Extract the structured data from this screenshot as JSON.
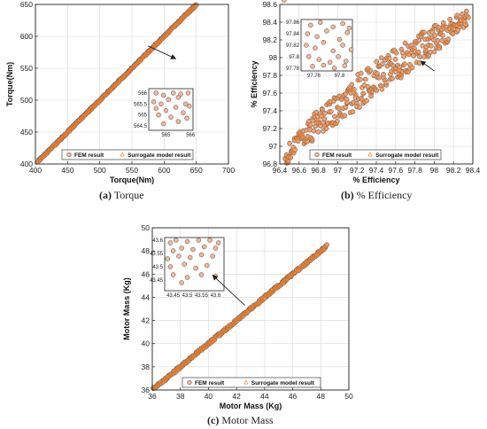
{
  "colors": {
    "fem_face": "#f2b79a",
    "fem_edge": "#4a4a4a",
    "surrogate": "#e07a2a",
    "frame": "#222222",
    "grid": "#d9d9d9"
  },
  "legend": {
    "fem": "FEM result",
    "surrogate": "Surrogate model result",
    "placement": "bottom"
  },
  "captions": [
    {
      "tag": "(a)",
      "text": "Torque"
    },
    {
      "tag": "(b)",
      "text": "% Efficiency"
    },
    {
      "tag": "(c)",
      "text": "Motor Mass"
    }
  ],
  "chart_data": [
    {
      "type": "scatter",
      "xlabel": "Torque(Nm)",
      "ylabel": "Torque(Nm)",
      "xlim": [
        400,
        700
      ],
      "ylim": [
        400,
        650
      ],
      "xticks": [
        "400",
        "450",
        "500",
        "550",
        "600",
        "650",
        "700"
      ],
      "yticks": [
        "400",
        "450",
        "500",
        "550",
        "600",
        "650"
      ],
      "grid": true,
      "series": [
        {
          "name": "FEM result",
          "x_range": [
            405,
            650
          ],
          "spread": 1.5
        },
        {
          "name": "Surrogate model result",
          "x_range": [
            405,
            650
          ],
          "spread": 1.5
        }
      ],
      "inset": {
        "xlim": [
          564.3,
          566.1
        ],
        "ylim": [
          564.3,
          566.2
        ],
        "xticks": [
          "565",
          "566"
        ],
        "yticks": [
          "566",
          "565.5",
          "565",
          "564.5"
        ],
        "points": [
          [
            564.6,
            566.0
          ],
          [
            564.9,
            565.9
          ],
          [
            565.3,
            566.0
          ],
          [
            565.6,
            565.95
          ],
          [
            565.9,
            566.0
          ],
          [
            564.5,
            565.6
          ],
          [
            564.8,
            565.5
          ],
          [
            565.1,
            565.7
          ],
          [
            565.5,
            565.8
          ],
          [
            565.8,
            565.5
          ],
          [
            564.6,
            565.3
          ],
          [
            565.0,
            565.2
          ],
          [
            565.4,
            565.35
          ],
          [
            565.7,
            565.1
          ],
          [
            565.95,
            565.4
          ],
          [
            564.7,
            565.0
          ],
          [
            565.2,
            564.9
          ],
          [
            565.5,
            564.7
          ],
          [
            565.85,
            564.85
          ],
          [
            564.9,
            564.6
          ]
        ],
        "arrow_from": [
          575,
          585
        ],
        "arrow_to": [
          618,
          565
        ]
      }
    },
    {
      "type": "scatter",
      "xlabel": "% Efficiency",
      "ylabel": "% Efficiency",
      "xlim": [
        96.4,
        98.4
      ],
      "ylim": [
        96.8,
        98.6
      ],
      "xticks": [
        "96.4",
        "96.6",
        "96.8",
        "97",
        "97.2",
        "97.4",
        "97.6",
        "97.8",
        "98",
        "98.2",
        "98.4"
      ],
      "yticks": [
        "96.8",
        "97",
        "97.2",
        "97.4",
        "97.6",
        "97.8",
        "98",
        "98.2",
        "98.4",
        "98.6"
      ],
      "grid": true,
      "series": [
        {
          "name": "FEM result",
          "x_range": [
            96.45,
            98.35
          ],
          "spread": 0.06
        },
        {
          "name": "Surrogate model result",
          "x_range": [
            96.45,
            98.35
          ],
          "spread": 0.06
        }
      ],
      "inset": {
        "xlim": [
          97.74,
          97.82
        ],
        "ylim": [
          97.775,
          97.865
        ],
        "xticks": [
          "97.76",
          "97.8"
        ],
        "yticks": [
          "97.86",
          "97.84",
          "97.82",
          "97.8",
          "97.78"
        ],
        "points": [
          [
            97.755,
            97.855
          ],
          [
            97.77,
            97.86
          ],
          [
            97.79,
            97.852
          ],
          [
            97.805,
            97.858
          ],
          [
            97.815,
            97.85
          ],
          [
            97.75,
            97.84
          ],
          [
            97.765,
            97.835
          ],
          [
            97.78,
            97.845
          ],
          [
            97.8,
            97.83
          ],
          [
            97.812,
            97.842
          ],
          [
            97.748,
            97.82
          ],
          [
            97.762,
            97.815
          ],
          [
            97.775,
            97.825
          ],
          [
            97.79,
            97.81
          ],
          [
            97.805,
            97.82
          ],
          [
            97.818,
            97.812
          ],
          [
            97.752,
            97.8
          ],
          [
            97.768,
            97.795
          ],
          [
            97.785,
            97.79
          ],
          [
            97.798,
            97.8
          ],
          [
            97.81,
            97.792
          ],
          [
            97.758,
            97.783
          ],
          [
            97.775,
            97.785
          ],
          [
            97.792,
            97.78
          ],
          [
            97.808,
            97.784
          ]
        ],
        "arrow_from": [
          98.0,
          97.85
        ],
        "arrow_to": [
          97.86,
          97.96
        ]
      }
    },
    {
      "type": "scatter",
      "xlabel": "Motor Mass (Kg)",
      "ylabel": "Motor Mass (Kg)",
      "xlim": [
        36,
        50
      ],
      "ylim": [
        36,
        50
      ],
      "xticks": [
        "36",
        "38",
        "40",
        "42",
        "44",
        "46",
        "48",
        "50"
      ],
      "yticks": [
        "36",
        "38",
        "40",
        "42",
        "44",
        "46",
        "48",
        "50"
      ],
      "grid": true,
      "series": [
        {
          "name": "FEM result",
          "x_range": [
            36.1,
            48.4
          ],
          "spread": 0.12
        },
        {
          "name": "Surrogate model result",
          "x_range": [
            36.1,
            48.4
          ],
          "spread": 0.12
        }
      ],
      "inset": {
        "xlim": [
          43.42,
          43.63
        ],
        "ylim": [
          43.41,
          43.61
        ],
        "xticks": [
          "43.45",
          "43.5",
          "43.55",
          "43.6"
        ],
        "yticks": [
          "43.6",
          "43.55",
          "43.5",
          "43.45"
        ],
        "points": [
          [
            43.44,
            43.59
          ],
          [
            43.46,
            43.6
          ],
          [
            43.5,
            43.595
          ],
          [
            43.54,
            43.6
          ],
          [
            43.58,
            43.6
          ],
          [
            43.61,
            43.59
          ],
          [
            43.45,
            43.56
          ],
          [
            43.48,
            43.57
          ],
          [
            43.52,
            43.565
          ],
          [
            43.56,
            43.575
          ],
          [
            43.6,
            43.57
          ],
          [
            43.43,
            43.53
          ],
          [
            43.47,
            43.54
          ],
          [
            43.51,
            43.535
          ],
          [
            43.55,
            43.545
          ],
          [
            43.59,
            43.54
          ],
          [
            43.44,
            43.5
          ],
          [
            43.49,
            43.51
          ],
          [
            43.53,
            43.495
          ],
          [
            43.57,
            43.505
          ],
          [
            43.45,
            43.47
          ],
          [
            43.5,
            43.46
          ],
          [
            43.55,
            43.47
          ],
          [
            43.6,
            43.465
          ],
          [
            43.48,
            43.44
          ]
        ],
        "arrow_from": [
          42.6,
          43.3
        ],
        "arrow_to": [
          40.3,
          45.9
        ]
      }
    }
  ]
}
